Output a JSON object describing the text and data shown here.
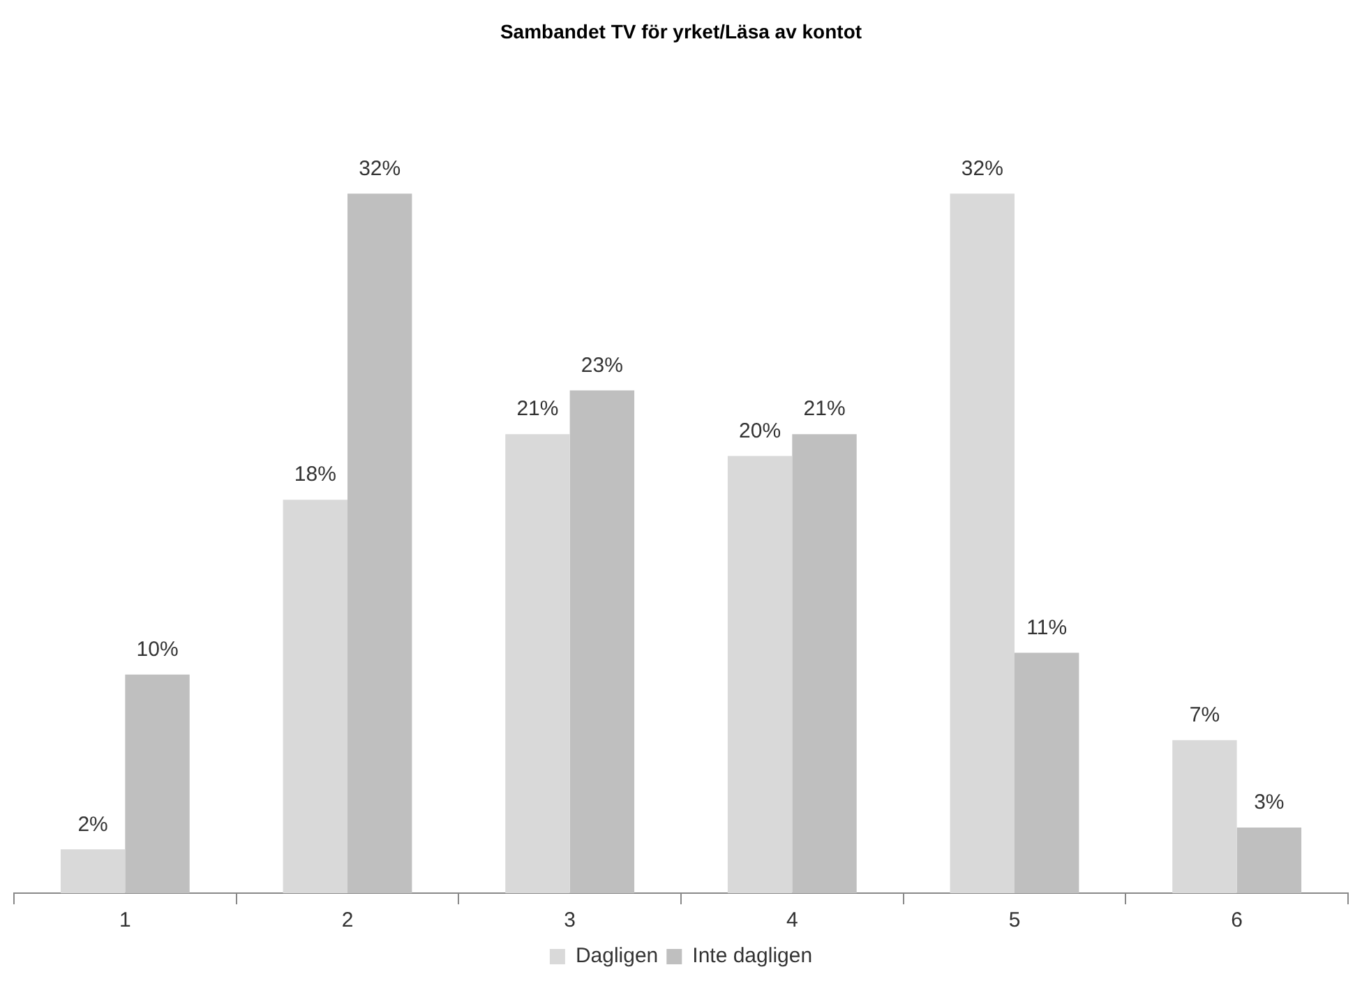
{
  "chart_data": {
    "type": "bar",
    "title": "Sambandet TV för yrket/Läsa av kontot",
    "categories": [
      "1",
      "2",
      "3",
      "4",
      "5",
      "6"
    ],
    "series": [
      {
        "name": "Dagligen",
        "color": "#d9d9d9",
        "values": [
          2,
          18,
          21,
          20,
          32,
          7
        ],
        "value_labels": [
          "2%",
          "18%",
          "21%",
          "20%",
          "32%",
          "7%"
        ]
      },
      {
        "name": "Inte dagligen",
        "color": "#bfbfbf",
        "values": [
          10,
          32,
          23,
          21,
          11,
          3
        ],
        "value_labels": [
          "10%",
          "32%",
          "23%",
          "21%",
          "11%",
          "3%"
        ]
      }
    ],
    "legend": "bottom",
    "tick_labels": "x",
    "grid": false
  }
}
